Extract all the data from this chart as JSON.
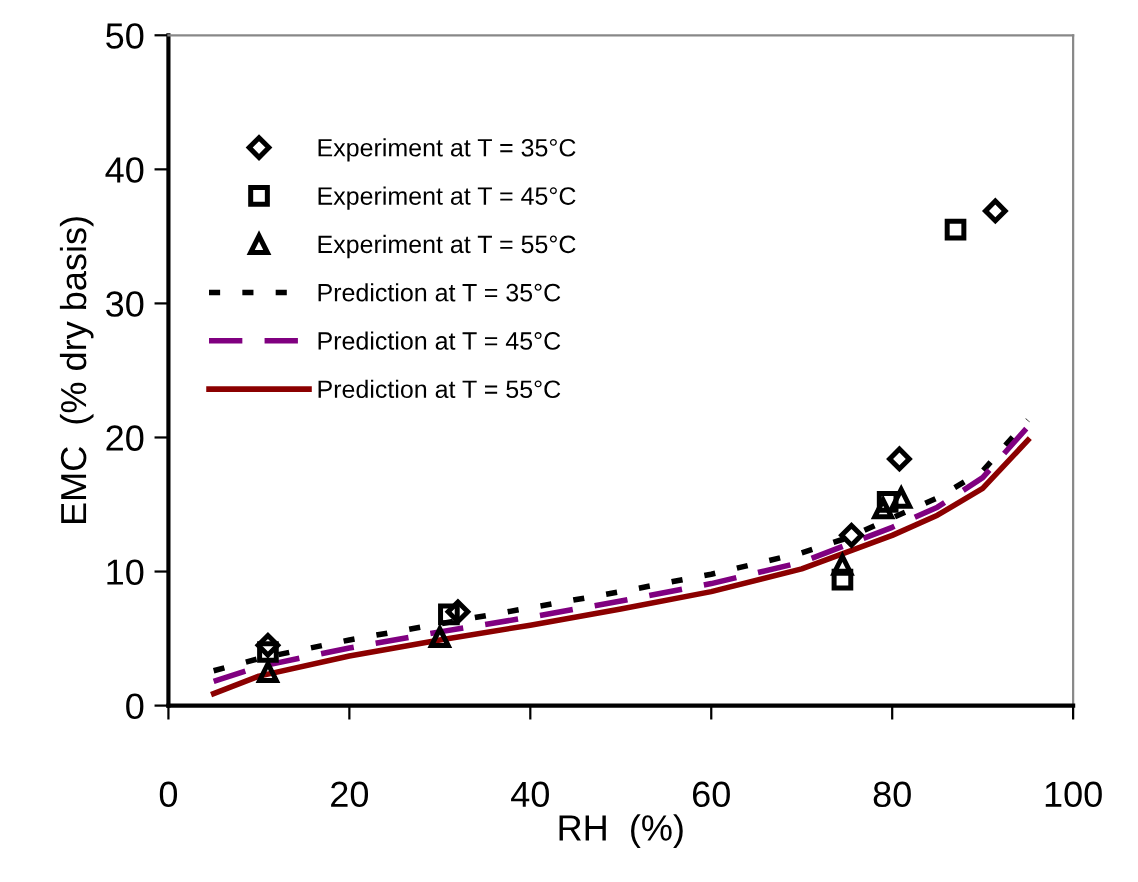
{
  "chart_data": {
    "type": "scatter",
    "xlabel": "RH  (%)",
    "ylabel": "EMC  (% dry basis)",
    "xlim": [
      0,
      100
    ],
    "ylim": [
      0,
      50
    ],
    "xticks": [
      0,
      20,
      40,
      60,
      80,
      100
    ],
    "yticks": [
      0,
      10,
      20,
      30,
      40,
      50
    ],
    "grid": false,
    "legend": "top left",
    "series": [
      {
        "name": "Experiment at T = 35°C",
        "marker": "diamond",
        "color": "#000000",
        "x": [
          11,
          32,
          75.5,
          80.8,
          91.4
        ],
        "values": [
          4.5,
          7,
          12.7,
          18.4,
          36.9
        ]
      },
      {
        "name": "Experiment at T = 45°C",
        "marker": "square",
        "color": "#000000",
        "x": [
          11,
          31,
          74.5,
          79.5,
          87
        ],
        "values": [
          4,
          6.8,
          9.4,
          15.2,
          35.5
        ]
      },
      {
        "name": "Experiment at T = 55°C",
        "marker": "triangle",
        "color": "#000000",
        "x": [
          11,
          30,
          74.5,
          79,
          81
        ],
        "values": [
          2.5,
          5.1,
          10.5,
          14.7,
          15.5
        ]
      },
      {
        "name": "Prediction at T = 35°C",
        "type": "line",
        "line_style": "dotted",
        "color": "#000000",
        "x": [
          5,
          10,
          20,
          30,
          40,
          50,
          60,
          70,
          75,
          80,
          85,
          90,
          95
        ],
        "values": [
          2.6,
          3.5,
          4.9,
          6.1,
          7.3,
          8.5,
          9.8,
          11.4,
          12.5,
          14,
          15.5,
          17.5,
          21.3
        ]
      },
      {
        "name": "Prediction at T = 45°C",
        "type": "line",
        "line_style": "dashed",
        "color": "#800080",
        "x": [
          5,
          10,
          20,
          30,
          40,
          50,
          60,
          70,
          80,
          85,
          90,
          95
        ],
        "values": [
          1.8,
          2.9,
          4.3,
          5.5,
          6.6,
          7.8,
          9.1,
          10.7,
          13.3,
          14.8,
          17,
          20.8
        ]
      },
      {
        "name": "Prediction at T = 55°C",
        "type": "line",
        "line_style": "solid",
        "color": "#8b0000",
        "x": [
          5,
          10,
          20,
          30,
          40,
          50,
          60,
          70,
          80,
          85,
          90,
          95
        ],
        "values": [
          0.9,
          2.2,
          3.7,
          4.9,
          6.0,
          7.2,
          8.5,
          10.2,
          12.7,
          14.2,
          16.2,
          19.8
        ]
      }
    ]
  }
}
